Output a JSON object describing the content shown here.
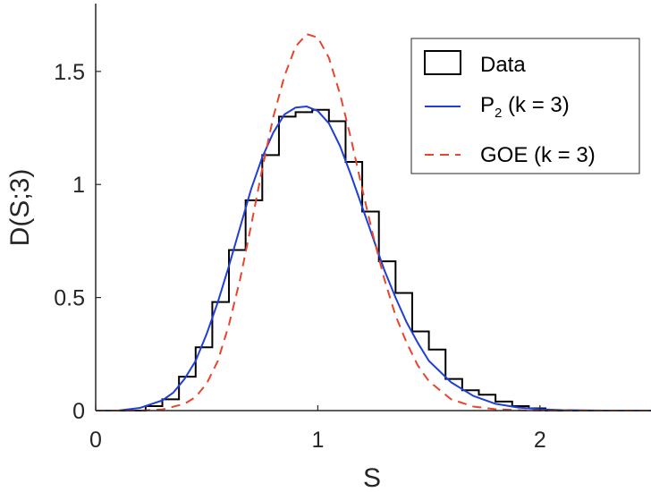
{
  "chart_data": {
    "type": "line",
    "xlabel": "S",
    "ylabel": "D(S;3)",
    "xlim": [
      0,
      2.5
    ],
    "ylim": [
      0,
      1.8
    ],
    "xticks": [
      0,
      1,
      2
    ],
    "xtick_labels": [
      "0",
      "1",
      "2"
    ],
    "yticks": [
      0,
      0.5,
      1,
      1.5
    ],
    "ytick_labels": [
      "0",
      "0.5",
      "1",
      "1.5"
    ],
    "legend_position": "top-right",
    "legend": {
      "data": "Data",
      "p2_main": "P",
      "p2_sub": "2",
      "p2_rest": " (k = 3)",
      "goe": "GOE (k = 3)"
    },
    "colors": {
      "data": "#000000",
      "p2": "#1f3fd6",
      "goe": "#e8452c"
    },
    "histogram": {
      "name": "Data",
      "bin_width": 0.075,
      "edges_start": 0.225,
      "values": [
        0.02,
        0.05,
        0.15,
        0.28,
        0.48,
        0.71,
        0.93,
        1.13,
        1.3,
        1.32,
        1.33,
        1.28,
        1.1,
        0.88,
        0.66,
        0.52,
        0.35,
        0.27,
        0.14,
        0.09,
        0.07,
        0.04,
        0.02,
        0.01,
        0.0
      ]
    },
    "series": [
      {
        "name": "P2 (k = 3)",
        "style": "solid",
        "x": [
          0.0,
          0.1,
          0.2,
          0.3,
          0.35,
          0.4,
          0.45,
          0.5,
          0.55,
          0.6,
          0.65,
          0.7,
          0.75,
          0.8,
          0.85,
          0.9,
          0.95,
          1.0,
          1.05,
          1.1,
          1.15,
          1.2,
          1.25,
          1.3,
          1.35,
          1.4,
          1.45,
          1.5,
          1.6,
          1.7,
          1.8,
          1.9,
          2.0,
          2.1,
          2.2,
          2.3,
          2.4,
          2.5
        ],
        "y": [
          0.0,
          0.0,
          0.012,
          0.045,
          0.08,
          0.14,
          0.22,
          0.34,
          0.48,
          0.64,
          0.81,
          0.98,
          1.12,
          1.23,
          1.31,
          1.34,
          1.345,
          1.325,
          1.27,
          1.17,
          1.04,
          0.9,
          0.76,
          0.62,
          0.5,
          0.39,
          0.3,
          0.22,
          0.125,
          0.065,
          0.03,
          0.014,
          0.006,
          0.002,
          0.001,
          0.0,
          0.0,
          0.0
        ]
      },
      {
        "name": "GOE (k = 3)",
        "style": "dashed",
        "x": [
          0.0,
          0.2,
          0.3,
          0.4,
          0.45,
          0.5,
          0.55,
          0.6,
          0.65,
          0.7,
          0.75,
          0.8,
          0.85,
          0.9,
          0.95,
          1.0,
          1.05,
          1.1,
          1.15,
          1.2,
          1.25,
          1.3,
          1.35,
          1.4,
          1.45,
          1.5,
          1.6,
          1.7,
          1.8,
          1.9,
          2.0,
          2.2,
          2.5
        ],
        "y": [
          0.0,
          0.0,
          0.005,
          0.03,
          0.06,
          0.12,
          0.22,
          0.38,
          0.58,
          0.82,
          1.07,
          1.3,
          1.48,
          1.61,
          1.665,
          1.65,
          1.56,
          1.4,
          1.2,
          0.98,
          0.77,
          0.58,
          0.42,
          0.3,
          0.2,
          0.13,
          0.05,
          0.018,
          0.006,
          0.002,
          0.0,
          0.0,
          0.0
        ]
      }
    ]
  }
}
